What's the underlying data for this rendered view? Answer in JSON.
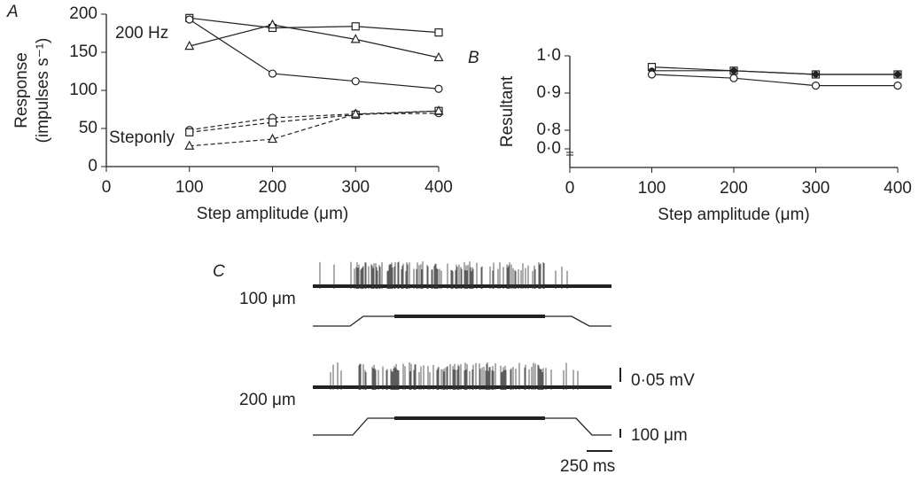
{
  "chart_data": [
    {
      "type": "line",
      "panel": "A",
      "ylabel": [
        "Response",
        "(impulses s⁻¹)"
      ],
      "xlabel": "Step amplitude (μm)",
      "annotations": [
        "200 Hz",
        "Steponly"
      ],
      "x": [
        100,
        200,
        300,
        400
      ],
      "xlim": [
        0,
        400
      ],
      "xticks": [
        0,
        100,
        200,
        300,
        400
      ],
      "ylim": [
        0,
        200
      ],
      "yticks": [
        0,
        50,
        100,
        150,
        200
      ],
      "color": "#222222",
      "series": [
        {
          "marker": "square",
          "dash": false,
          "values": [
            195,
            182,
            184,
            176
          ]
        },
        {
          "marker": "triangle",
          "dash": false,
          "values": [
            158,
            186,
            167,
            143
          ]
        },
        {
          "marker": "circle",
          "dash": false,
          "values": [
            193,
            122,
            112,
            102
          ]
        },
        {
          "marker": "circle",
          "dash": true,
          "values": [
            48,
            64,
            69,
            70
          ]
        },
        {
          "marker": "square",
          "dash": true,
          "values": [
            45,
            58,
            68,
            73
          ]
        },
        {
          "marker": "triangle",
          "dash": true,
          "values": [
            27,
            36,
            69,
            73
          ]
        }
      ]
    },
    {
      "type": "line",
      "panel": "B",
      "ylabel": [
        "Resultant"
      ],
      "xlabel": "Step amplitude (μm)",
      "annotations": [],
      "x": [
        100,
        200,
        300,
        400
      ],
      "xlim": [
        0,
        400
      ],
      "xticks": [
        0,
        100,
        200,
        300,
        400
      ],
      "ylim": [
        0.7,
        1.0
      ],
      "axis_break": true,
      "yticks": [
        {
          "value": 0,
          "label": "0·0"
        },
        {
          "value": 0.8,
          "label": "0·8"
        },
        {
          "value": 0.9,
          "label": "0·9"
        },
        {
          "value": 1.0,
          "label": "1·0"
        }
      ],
      "color": "#222222",
      "series": [
        {
          "marker": "square",
          "dash": false,
          "values": [
            0.97,
            0.96,
            0.95,
            0.95
          ]
        },
        {
          "marker": "dot",
          "dash": false,
          "values": [
            0.96,
            0.96,
            0.95,
            0.95
          ]
        },
        {
          "marker": "circle",
          "dash": false,
          "values": [
            0.95,
            0.94,
            0.92,
            0.92
          ]
        }
      ]
    }
  ],
  "panel_c": {
    "label": "C",
    "trace_1": "100 μm",
    "trace_2": "200 μm",
    "voltage_bar": "0·05 mV",
    "step_bar": "100 μm",
    "time_bar": "250 ms"
  }
}
